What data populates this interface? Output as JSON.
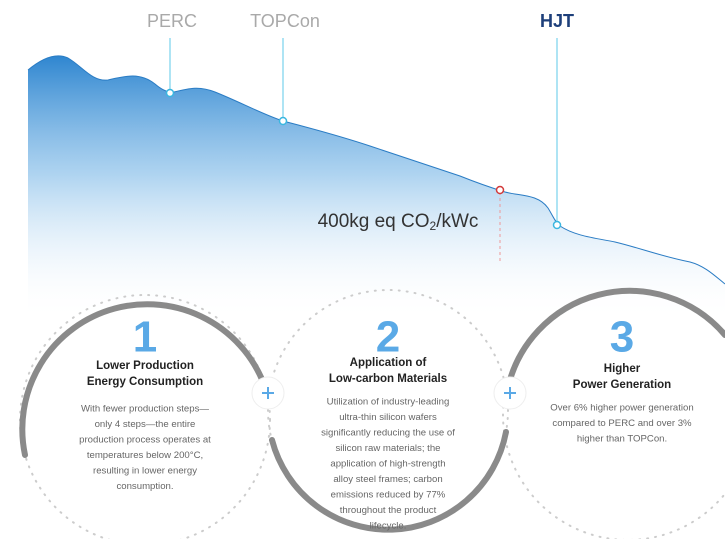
{
  "tech_labels": [
    "PERC",
    "TOPCon",
    "HJT"
  ],
  "annotation": {
    "prefix": "400kg eq CO",
    "subscript": "2",
    "suffix": "/kWc"
  },
  "features": [
    {
      "number": "1",
      "title": [
        "Lower Production",
        "Energy Consumption"
      ],
      "description": [
        "With fewer production steps—",
        "only 4 steps—the entire",
        "production process operates at",
        "temperatures below 200°C,",
        "resulting in lower energy",
        "consumption."
      ]
    },
    {
      "number": "2",
      "title": [
        "Application of",
        "Low-carbon Materials"
      ],
      "description": [
        "Utilization of industry-leading",
        "ultra-thin silicon wafers",
        "significantly reducing the use of",
        "silicon raw materials; the",
        "application of high-strength",
        "alloy steel frames; carbon",
        "emissions reduced by 77%",
        "throughout the product",
        "lifecycle."
      ]
    },
    {
      "number": "3",
      "title": [
        "Higher",
        "Power Generation"
      ],
      "description": [
        "Over 6% higher power generation",
        "compared to PERC and over 3%",
        "higher than TOPCon."
      ]
    }
  ]
}
